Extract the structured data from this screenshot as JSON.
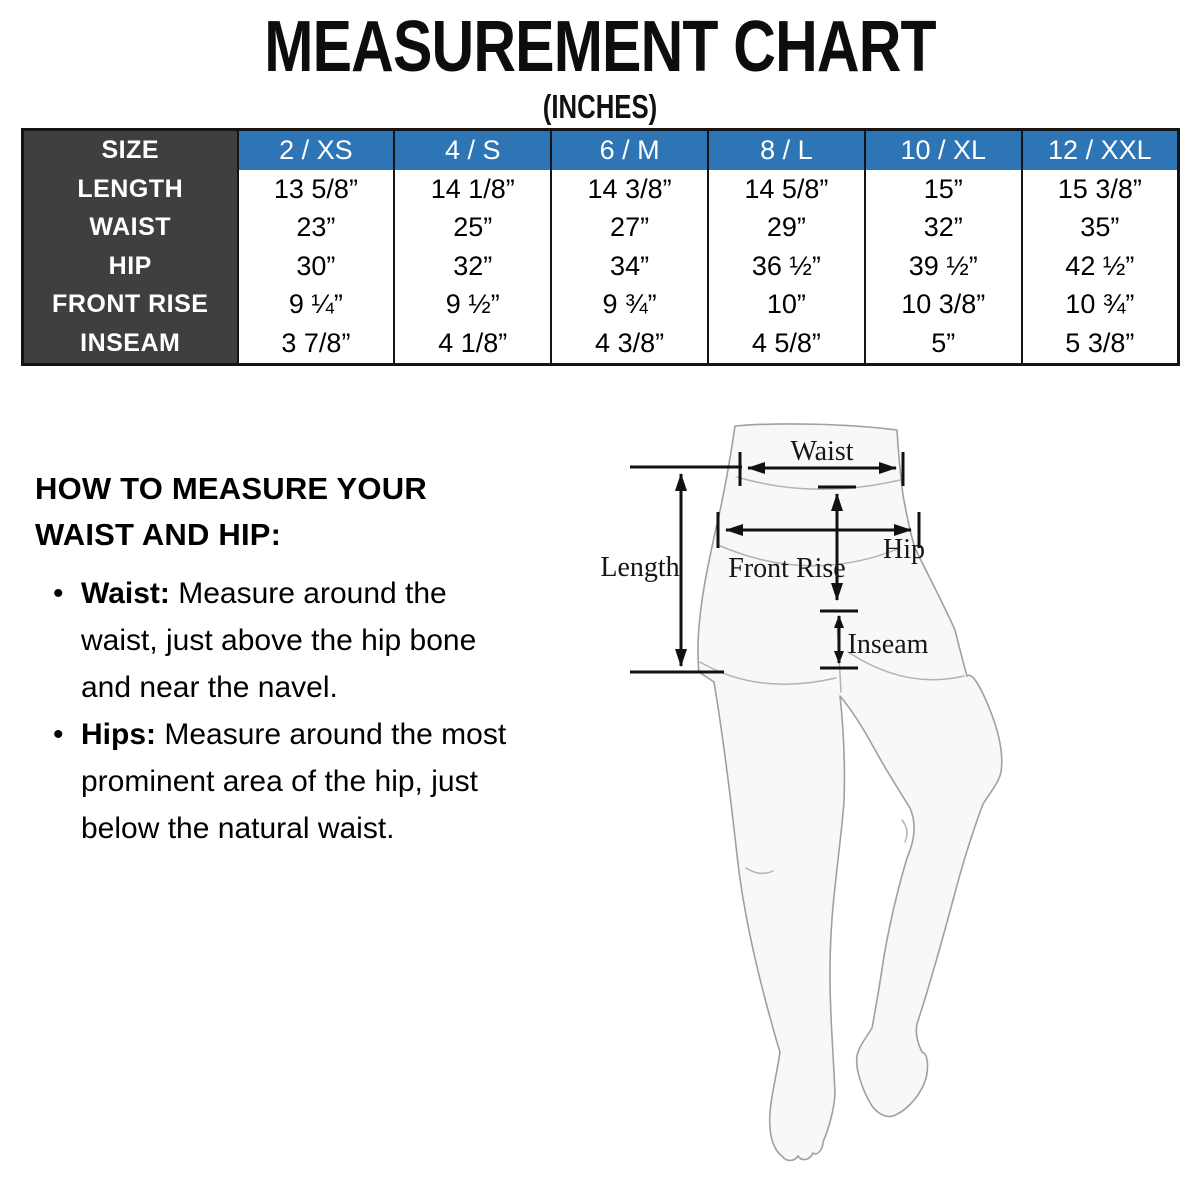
{
  "title": "MEASUREMENT CHART",
  "subtitle": "(INCHES)",
  "chart_data": {
    "type": "table",
    "title": "MEASUREMENT CHART",
    "units": "INCHES",
    "columns": [
      "SIZE",
      "2 / XS",
      "4 / S",
      "6 / M",
      "8 / L",
      "10 / XL",
      "12 / XXL"
    ],
    "rows": [
      {
        "label": "LENGTH",
        "values": [
          "13 5/8”",
          "14 1/8”",
          "14 3/8”",
          "14 5/8”",
          "15”",
          "15 3/8”"
        ]
      },
      {
        "label": "WAIST",
        "values": [
          "23”",
          "25”",
          "27”",
          "29”",
          "32”",
          "35”"
        ]
      },
      {
        "label": "HIP",
        "values": [
          "30”",
          "32”",
          "34”",
          "36 ½”",
          "39 ½”",
          "42 ½”"
        ]
      },
      {
        "label": "FRONT RISE",
        "values": [
          "9 ¼”",
          "9 ½”",
          "9 ¾”",
          "10”",
          "10 3/8”",
          "10 ¾”"
        ]
      },
      {
        "label": "INSEAM",
        "values": [
          "3 7/8”",
          "4 1/8”",
          "4 3/8”",
          "4 5/8”",
          "5”",
          "5 3/8”"
        ]
      }
    ],
    "colors": {
      "size_header_bg": "#2E75B6",
      "size_header_text": "#FFFFFF",
      "label_column_bg": "#3F3F3F",
      "label_column_text": "#FFFFFF",
      "cell_bg": "#FFFFFF",
      "cell_text": "#000000",
      "border": "#141414"
    }
  },
  "instructions": {
    "heading": "HOW TO MEASURE YOUR\nWAIST AND HIP:",
    "bullets": [
      {
        "lead": "Waist:",
        "text": "Measure around the\nwaist, just above the hip bone\nand near the navel."
      },
      {
        "lead": "Hips:",
        "text": "Measure around the most\nprominent area of the hip, just\nbelow the natural waist."
      }
    ]
  },
  "diagram": {
    "labels": {
      "waist": "Waist",
      "length": "Length",
      "hip": "Hip",
      "front_rise": "Front Rise",
      "inseam": "Inseam"
    }
  }
}
